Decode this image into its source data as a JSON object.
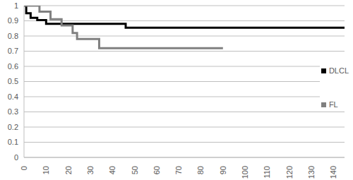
{
  "chart_data": {
    "type": "line",
    "xlim": [
      0,
      145
    ],
    "xticks": [
      0,
      10,
      20,
      30,
      40,
      50,
      60,
      70,
      80,
      90,
      100,
      110,
      120,
      130,
      140
    ],
    "ylim": [
      0,
      1
    ],
    "yticks": [
      0,
      0.1,
      0.2,
      0.3,
      0.4,
      0.5,
      0.6,
      0.7,
      0.8,
      0.9,
      1
    ],
    "grid": true,
    "legend": "right",
    "line_style": "step",
    "series": [
      {
        "name": "DLCL",
        "color": "#000000",
        "x": [
          0,
          1,
          3,
          6,
          10,
          46,
          145
        ],
        "values": [
          1,
          0.95,
          0.92,
          0.905,
          0.88,
          0.855,
          0.855
        ]
      },
      {
        "name": "FL",
        "color": "#808080",
        "x": [
          0,
          7,
          12,
          17,
          22,
          24,
          34,
          90
        ],
        "values": [
          1,
          0.96,
          0.91,
          0.87,
          0.82,
          0.78,
          0.72,
          0.72
        ]
      }
    ]
  }
}
